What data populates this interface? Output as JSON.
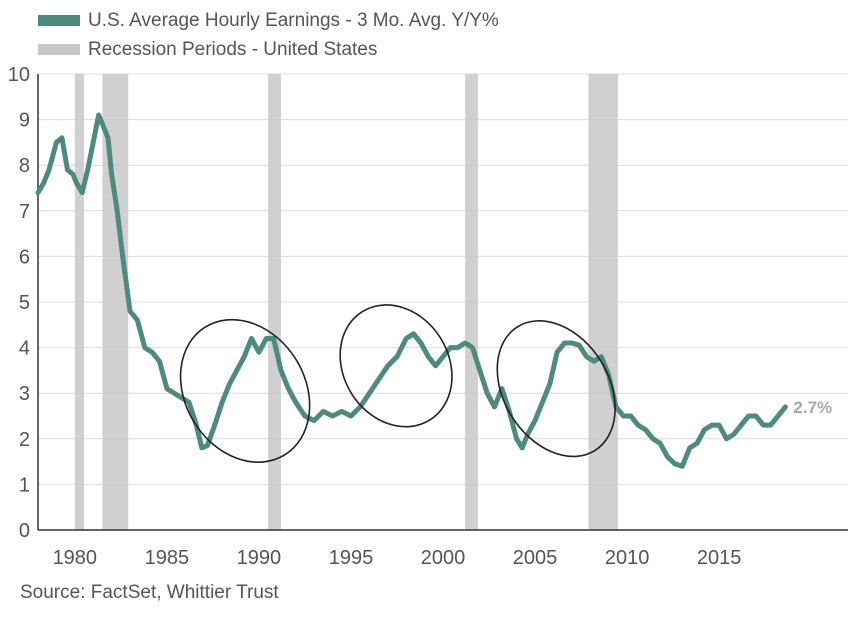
{
  "legend": [
    {
      "label": "U.S. Average Hourly Earnings -  3 Mo. Avg. Y/Y%",
      "color": "#4e8a7e"
    },
    {
      "label": "Recession Periods - United States",
      "color": "#c8c8c8"
    }
  ],
  "source": "Source: FactSet, Whittier Trust",
  "chart_data": {
    "type": "line",
    "title": "",
    "xlabel": "",
    "ylabel": "",
    "xlim": [
      1978,
      2022
    ],
    "ylim": [
      0,
      10
    ],
    "grid": true,
    "legend_position": "top-left",
    "x_ticks": [
      1980,
      1985,
      1990,
      1995,
      2000,
      2005,
      2010,
      2015
    ],
    "y_ticks": [
      0,
      1,
      2,
      3,
      4,
      5,
      6,
      7,
      8,
      9,
      10
    ],
    "end_label": "2.7%",
    "recessions": [
      [
        1980.0,
        1980.5
      ],
      [
        1981.5,
        1982.9
      ],
      [
        1990.5,
        1991.2
      ],
      [
        2001.2,
        2001.9
      ],
      [
        2007.9,
        2009.5
      ]
    ],
    "highlight_ellipses": [
      {
        "x_range": [
          1986.0,
          1992.5
        ],
        "y_range": [
          1.4,
          4.7
        ]
      },
      {
        "x_range": [
          1994.6,
          2000.3
        ],
        "y_range": [
          2.2,
          5.0
        ]
      },
      {
        "x_range": [
          2003.3,
          2009.0
        ],
        "y_range": [
          1.5,
          4.7
        ]
      }
    ],
    "series": [
      {
        "name": "U.S. Average Hourly Earnings -  3 Mo. Avg. Y/Y%",
        "x": [
          1978.0,
          1978.3,
          1978.6,
          1979.0,
          1979.3,
          1979.6,
          1979.9,
          1980.1,
          1980.4,
          1980.7,
          1981.0,
          1981.3,
          1981.5,
          1981.8,
          1982.0,
          1982.3,
          1982.6,
          1983.0,
          1983.4,
          1983.8,
          1984.2,
          1984.6,
          1985.0,
          1985.4,
          1985.8,
          1986.2,
          1986.6,
          1986.9,
          1987.2,
          1987.6,
          1988.0,
          1988.4,
          1988.8,
          1989.2,
          1989.6,
          1990.0,
          1990.4,
          1990.8,
          1991.2,
          1991.6,
          1992.0,
          1992.5,
          1993.0,
          1993.5,
          1994.0,
          1994.5,
          1995.0,
          1995.5,
          1996.0,
          1996.5,
          1997.0,
          1997.5,
          1998.0,
          1998.4,
          1998.8,
          1999.2,
          1999.6,
          2000.0,
          2000.4,
          2000.8,
          2001.2,
          2001.6,
          2002.0,
          2002.4,
          2002.8,
          2003.2,
          2003.6,
          2004.0,
          2004.3,
          2004.6,
          2005.0,
          2005.4,
          2005.8,
          2006.2,
          2006.6,
          2007.0,
          2007.4,
          2007.8,
          2008.2,
          2008.6,
          2009.0,
          2009.4,
          2009.8,
          2010.2,
          2010.6,
          2011.0,
          2011.4,
          2011.8,
          2012.2,
          2012.6,
          2013.0,
          2013.4,
          2013.8,
          2014.2,
          2014.6,
          2015.0,
          2015.4,
          2015.8,
          2016.2,
          2016.6,
          2017.0,
          2017.4,
          2017.8,
          2018.2,
          2018.6
        ],
        "y": [
          7.4,
          7.6,
          7.9,
          8.5,
          8.6,
          7.9,
          7.8,
          7.6,
          7.4,
          7.9,
          8.5,
          9.1,
          8.9,
          8.6,
          7.8,
          7.0,
          6.0,
          4.8,
          4.6,
          4.0,
          3.9,
          3.7,
          3.1,
          3.0,
          2.9,
          2.8,
          2.3,
          1.8,
          1.85,
          2.3,
          2.8,
          3.2,
          3.5,
          3.8,
          4.2,
          3.9,
          4.2,
          4.2,
          3.5,
          3.1,
          2.8,
          2.5,
          2.4,
          2.6,
          2.5,
          2.6,
          2.5,
          2.7,
          3.0,
          3.3,
          3.6,
          3.8,
          4.2,
          4.3,
          4.1,
          3.8,
          3.6,
          3.8,
          4.0,
          4.0,
          4.1,
          4.0,
          3.5,
          3.0,
          2.7,
          3.1,
          2.6,
          2.0,
          1.8,
          2.1,
          2.4,
          2.8,
          3.2,
          3.9,
          4.1,
          4.1,
          4.05,
          3.8,
          3.7,
          3.8,
          3.4,
          2.7,
          2.5,
          2.5,
          2.3,
          2.2,
          2.0,
          1.9,
          1.6,
          1.45,
          1.4,
          1.8,
          1.9,
          2.2,
          2.3,
          2.3,
          2.0,
          2.1,
          2.3,
          2.5,
          2.5,
          2.3,
          2.3,
          2.5,
          2.7
        ]
      }
    ]
  }
}
